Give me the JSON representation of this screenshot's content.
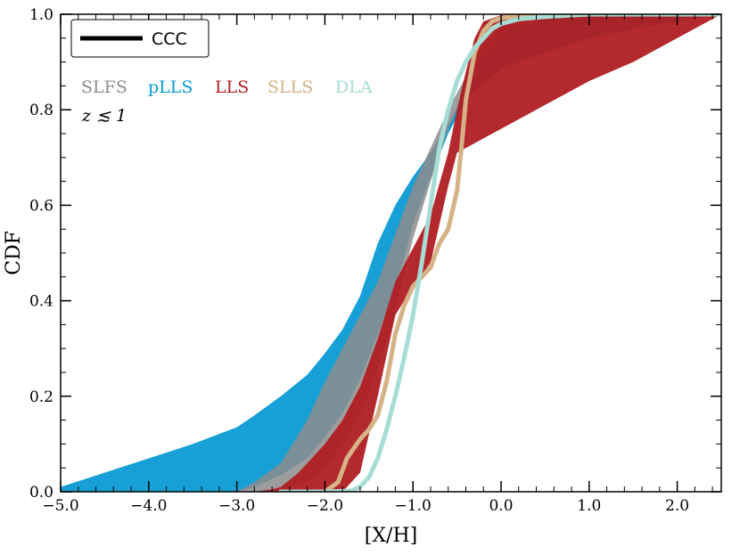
{
  "chart_data": {
    "type": "area",
    "xlabel": "[X/H]",
    "ylabel": "CDF",
    "xlim": [
      -5.0,
      2.5
    ],
    "ylim": [
      0.0,
      1.0
    ],
    "xticks": [
      -5.0,
      -4.0,
      -3.0,
      -2.0,
      -1.0,
      0.0,
      1.0,
      2.0
    ],
    "xtick_labels": [
      "−5.0",
      "−4.0",
      "−3.0",
      "−2.0",
      "−1.0",
      "0.0",
      "1.0",
      "2.0"
    ],
    "yticks": [
      0.0,
      0.2,
      0.4,
      0.6,
      0.8,
      1.0
    ],
    "ytick_labels": [
      "0.0",
      "0.2",
      "0.4",
      "0.6",
      "0.8",
      "1.0"
    ],
    "grid": false,
    "legend": {
      "placement": "top-left",
      "entries": [
        {
          "label": "CCC",
          "color": "#000000"
        }
      ]
    },
    "series_labels": [
      {
        "label": "SLFS",
        "color": "#8c8c8c"
      },
      {
        "label": "pLLS",
        "color": "#0a9bd4"
      },
      {
        "label": "LLS",
        "color": "#b01e22"
      },
      {
        "label": "SLLS",
        "color": "#d6b287"
      },
      {
        "label": "DLA",
        "color": "#a8ddd6"
      }
    ],
    "annotation": "z ≲ 1",
    "series": [
      {
        "name": "pLLS",
        "kind": "band",
        "color": "#0a9bd4",
        "x": [
          -5.0,
          -4.0,
          -3.5,
          -3.0,
          -2.8,
          -2.5,
          -2.2,
          -2.0,
          -1.8,
          -1.6,
          -1.4,
          -1.2,
          -1.1,
          -1.0,
          -0.8,
          -0.6,
          -0.4,
          -0.2,
          0.0,
          0.2,
          0.5,
          1.0,
          1.5,
          2.0,
          2.5
        ],
        "upper": [
          0.01,
          0.07,
          0.1,
          0.135,
          0.16,
          0.2,
          0.245,
          0.29,
          0.34,
          0.41,
          0.52,
          0.6,
          0.63,
          0.66,
          0.71,
          0.77,
          0.84,
          0.93,
          0.965,
          0.98,
          0.99,
          0.995,
          1.0,
          1.0,
          1.0
        ],
        "lower": [
          0.0,
          0.0,
          0.0,
          0.0,
          0.01,
          0.035,
          0.07,
          0.115,
          0.165,
          0.235,
          0.33,
          0.43,
          0.49,
          0.56,
          0.66,
          0.75,
          0.82,
          0.855,
          0.885,
          0.9,
          0.92,
          0.95,
          0.97,
          0.985,
          1.0
        ]
      },
      {
        "name": "SLFS",
        "kind": "band",
        "color": "#8c8c8c",
        "x": [
          -5.0,
          -4.0,
          -3.5,
          -3.0,
          -2.8,
          -2.5,
          -2.2,
          -2.0,
          -1.8,
          -1.6,
          -1.4,
          -1.2,
          -1.0,
          -0.8,
          -0.6,
          -0.4,
          -0.2,
          0.0,
          0.2,
          0.5,
          1.0,
          1.5,
          2.0,
          2.5
        ],
        "upper": [
          0.0,
          0.0,
          0.0,
          0.0,
          0.02,
          0.06,
          0.15,
          0.23,
          0.3,
          0.37,
          0.44,
          0.54,
          0.64,
          0.72,
          0.8,
          0.87,
          0.94,
          0.975,
          0.99,
          0.995,
          1.0,
          1.0,
          1.0,
          1.0
        ],
        "lower": [
          0.0,
          0.0,
          0.0,
          0.0,
          0.0,
          0.005,
          0.02,
          0.05,
          0.1,
          0.16,
          0.26,
          0.38,
          0.53,
          0.65,
          0.76,
          0.84,
          0.91,
          0.955,
          0.975,
          0.99,
          0.995,
          1.0,
          1.0,
          1.0
        ]
      },
      {
        "name": "LLS",
        "kind": "band",
        "color": "#b01e22",
        "x": [
          -3.0,
          -2.8,
          -2.6,
          -2.5,
          -2.3,
          -2.0,
          -1.8,
          -1.6,
          -1.4,
          -1.2,
          -1.0,
          -0.8,
          -0.6,
          -0.5,
          -0.4,
          -0.3,
          -0.2,
          0.0,
          0.2,
          0.5,
          1.0,
          1.5,
          2.0,
          2.5
        ],
        "upper": [
          0.0,
          0.0,
          0.005,
          0.01,
          0.04,
          0.1,
          0.15,
          0.22,
          0.32,
          0.44,
          0.51,
          0.58,
          0.71,
          0.8,
          0.88,
          0.95,
          0.985,
          0.998,
          1.0,
          1.0,
          1.0,
          1.0,
          1.0,
          1.0
        ],
        "lower": [
          0.0,
          0.0,
          0.0,
          0.0,
          0.0,
          0.0,
          0.0,
          0.04,
          0.2,
          0.37,
          0.43,
          0.48,
          0.64,
          0.71,
          0.72,
          0.73,
          0.74,
          0.76,
          0.78,
          0.81,
          0.86,
          0.9,
          0.95,
          1.0
        ]
      },
      {
        "name": "SLLS",
        "kind": "line",
        "color": "#d6b287",
        "x": [
          -2.5,
          -2.0,
          -1.85,
          -1.75,
          -1.6,
          -1.5,
          -1.4,
          -1.3,
          -1.2,
          -1.1,
          -1.0,
          -0.9,
          -0.8,
          -0.7,
          -0.6,
          -0.5,
          -0.45,
          -0.4,
          -0.3,
          -0.2,
          -0.1,
          0.0,
          0.2,
          0.5,
          1.0,
          2.5
        ],
        "y": [
          0.0,
          0.0,
          0.02,
          0.07,
          0.11,
          0.13,
          0.16,
          0.23,
          0.33,
          0.39,
          0.43,
          0.45,
          0.47,
          0.52,
          0.55,
          0.63,
          0.72,
          0.82,
          0.92,
          0.965,
          0.985,
          0.992,
          0.997,
          0.999,
          1.0,
          1.0
        ]
      },
      {
        "name": "DLA",
        "kind": "line",
        "color": "#a8ddd6",
        "x": [
          -2.5,
          -2.0,
          -1.7,
          -1.6,
          -1.5,
          -1.4,
          -1.3,
          -1.2,
          -1.1,
          -1.0,
          -0.9,
          -0.8,
          -0.7,
          -0.6,
          -0.5,
          -0.4,
          -0.3,
          -0.2,
          -0.1,
          0.0,
          0.2,
          0.5,
          1.0,
          2.5
        ],
        "y": [
          0.0,
          0.0,
          0.002,
          0.01,
          0.03,
          0.07,
          0.13,
          0.2,
          0.28,
          0.37,
          0.48,
          0.6,
          0.72,
          0.8,
          0.86,
          0.9,
          0.93,
          0.95,
          0.97,
          0.98,
          0.99,
          0.995,
          1.0,
          1.0
        ]
      }
    ]
  }
}
